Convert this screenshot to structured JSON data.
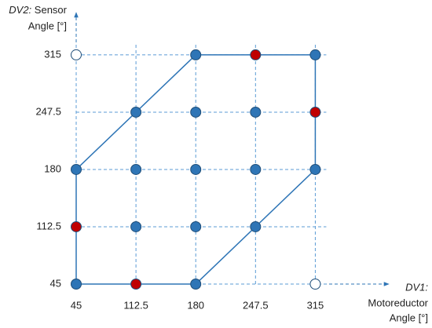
{
  "chart_data": {
    "type": "scatter",
    "xlabel_prefix": "DV1:",
    "xlabel": [
      "Motoreductor",
      "Angle [°]"
    ],
    "ylabel_prefix": "DV2:",
    "ylabel": [
      "Sensor",
      "Angle [°]"
    ],
    "xlim": [
      45,
      398
    ],
    "ylim": [
      45,
      363
    ],
    "xticks": [
      45,
      112.5,
      180,
      247.5,
      315
    ],
    "yticks": [
      45,
      112.5,
      180,
      247.5,
      315
    ],
    "grid": true,
    "boundary": {
      "color": "#2e75b6",
      "x": [
        45,
        180,
        315,
        315,
        180,
        45,
        45
      ],
      "y": [
        45,
        45,
        180,
        315,
        315,
        180,
        45
      ]
    },
    "series": [
      {
        "color": "#2e75b6",
        "x": [
          180,
          315,
          112.5,
          180,
          247.5,
          45,
          112.5,
          180,
          247.5,
          315,
          112.5,
          180,
          247.5,
          45,
          180
        ],
        "y": [
          315,
          315,
          247.5,
          247.5,
          247.5,
          180,
          180,
          180,
          180,
          180,
          112.5,
          112.5,
          112.5,
          45,
          45
        ]
      },
      {
        "color": "#c00000",
        "x": [
          247.5,
          315,
          45,
          112.5
        ],
        "y": [
          315,
          247.5,
          112.5,
          45
        ]
      },
      {
        "color": "#ffffff",
        "x": [
          45,
          315
        ],
        "y": [
          315,
          45
        ]
      }
    ]
  }
}
